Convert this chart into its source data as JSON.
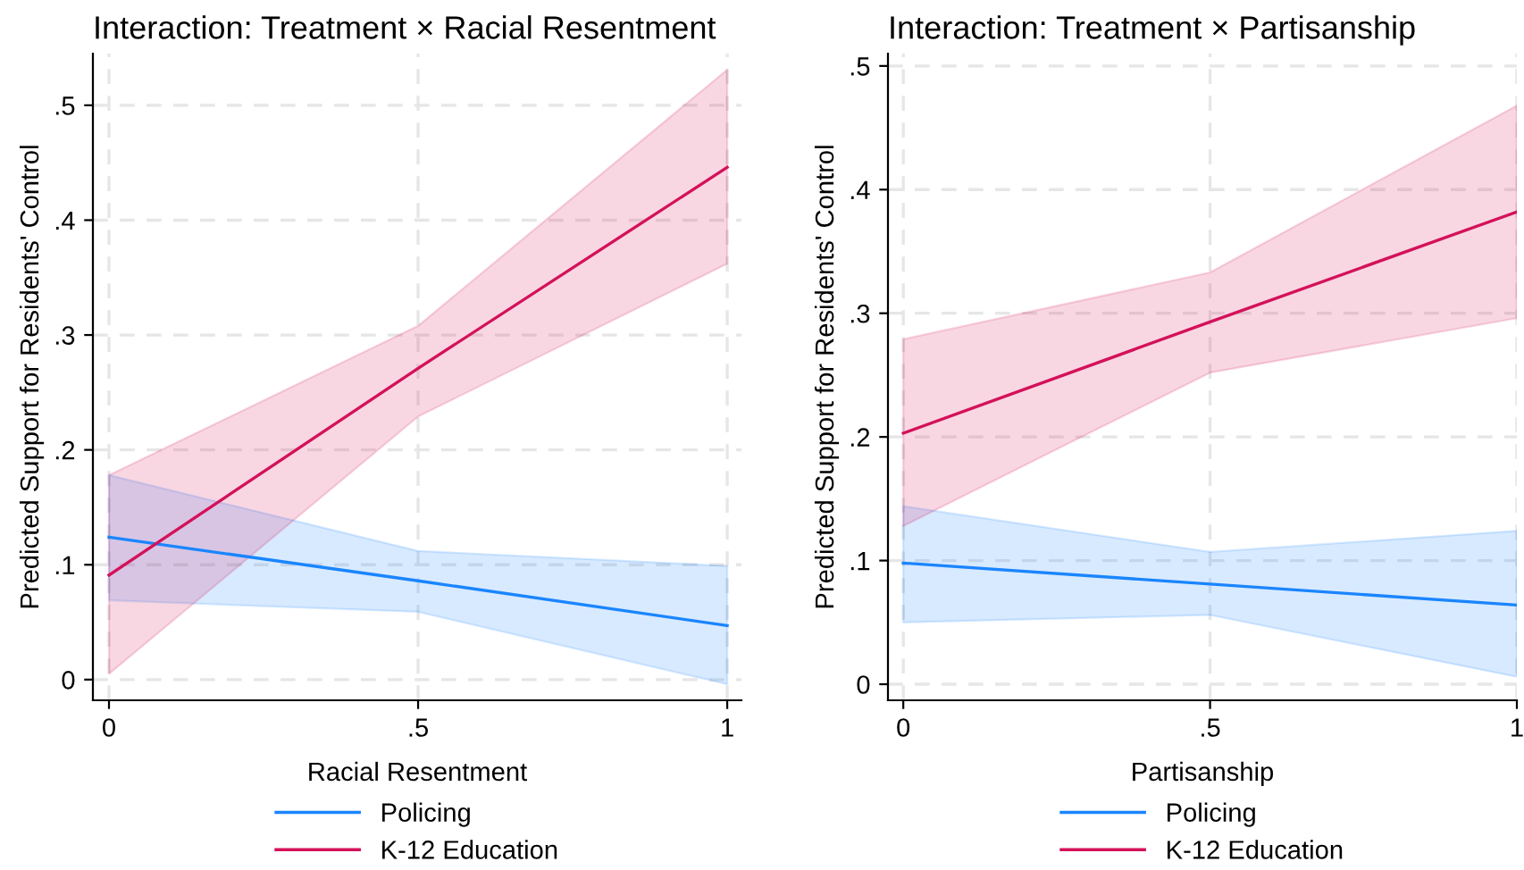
{
  "chart_data": [
    {
      "type": "line",
      "title": "Interaction: Treatment × Racial Resentment",
      "xlabel": "Racial Resentment",
      "ylabel": "Predicted Support for Residents' Control",
      "x": [
        0,
        0.5,
        1
      ],
      "xlim": [
        -0.026,
        1.023
      ],
      "xticks": [
        {
          "value": 0,
          "label": "0"
        },
        {
          "value": 0.5,
          "label": ".5"
        },
        {
          "value": 1,
          "label": "1"
        }
      ],
      "ylim": [
        -0.018,
        0.545
      ],
      "yticks": [
        {
          "value": 0,
          "label": "0"
        },
        {
          "value": 0.1,
          "label": ".1"
        },
        {
          "value": 0.2,
          "label": ".2"
        },
        {
          "value": 0.3,
          "label": ".3"
        },
        {
          "value": 0.4,
          "label": ".4"
        },
        {
          "value": 0.5,
          "label": ".5"
        }
      ],
      "grid": true,
      "legend": "bottom",
      "line_style": "solid",
      "series": [
        {
          "name": "Policing",
          "color": "#1a85ff",
          "values": [
            0.124,
            0.086,
            0.047
          ],
          "lower": [
            0.069,
            0.059,
            -0.004
          ],
          "upper": [
            0.178,
            0.112,
            0.099
          ]
        },
        {
          "name": "K-12 Education",
          "color": "#d41159",
          "values": [
            0.091,
            0.271,
            0.446
          ],
          "lower": [
            0.005,
            0.229,
            0.362
          ],
          "upper": [
            0.178,
            0.308,
            0.531
          ]
        }
      ]
    },
    {
      "type": "line",
      "title": "Interaction: Treatment × Partisanship",
      "xlabel": "Partisanship",
      "ylabel": "Predicted Support for Residents' Control",
      "x": [
        0,
        0.5,
        1
      ],
      "xlim": [
        -0.025,
        1.0
      ],
      "xticks": [
        {
          "value": 0,
          "label": "0"
        },
        {
          "value": 0.5,
          "label": ".5"
        },
        {
          "value": 1,
          "label": "1"
        }
      ],
      "ylim": [
        -0.013,
        0.51
      ],
      "yticks": [
        {
          "value": 0,
          "label": "0"
        },
        {
          "value": 0.1,
          "label": ".1"
        },
        {
          "value": 0.2,
          "label": ".2"
        },
        {
          "value": 0.3,
          "label": ".3"
        },
        {
          "value": 0.4,
          "label": ".4"
        },
        {
          "value": 0.5,
          "label": ".5"
        }
      ],
      "grid": true,
      "legend": "bottom",
      "line_style": "solid",
      "series": [
        {
          "name": "Policing",
          "color": "#1a85ff",
          "values": [
            0.098,
            0.081,
            0.064
          ],
          "lower": [
            0.05,
            0.056,
            0.006
          ],
          "upper": [
            0.144,
            0.107,
            0.124
          ]
        },
        {
          "name": "K-12 Education",
          "color": "#d41159",
          "values": [
            0.203,
            0.293,
            0.382
          ],
          "lower": [
            0.128,
            0.252,
            0.296
          ],
          "upper": [
            0.279,
            0.333,
            0.468
          ]
        }
      ]
    }
  ]
}
